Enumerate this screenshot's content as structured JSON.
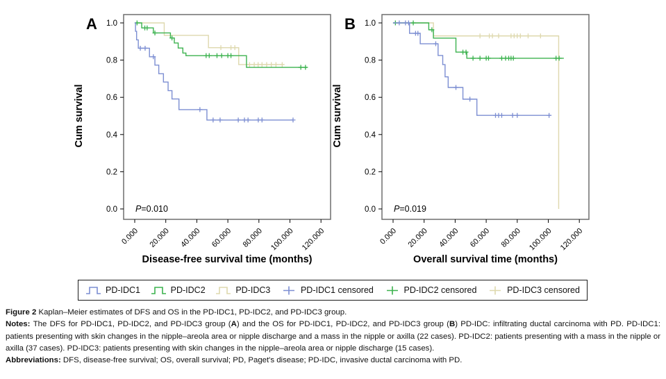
{
  "colors": {
    "idc1": "#7c8ed2",
    "idc2": "#3bb24e",
    "idc3": "#ded8ad",
    "frame": "#6e6e6e",
    "axis": "#000000"
  },
  "legend": {
    "items": [
      {
        "label": "PD-IDC1",
        "color_key": "idc1",
        "icon": "step"
      },
      {
        "label": "PD-IDC2",
        "color_key": "idc2",
        "icon": "step"
      },
      {
        "label": "PD-IDC3",
        "color_key": "idc3",
        "icon": "step"
      },
      {
        "label": "PD-IDC1 censored",
        "color_key": "idc1",
        "icon": "plus"
      },
      {
        "label": "PD-IDC2 censored",
        "color_key": "idc2",
        "icon": "plus"
      },
      {
        "label": "PD-IDC3 censored",
        "color_key": "idc3",
        "icon": "plus"
      }
    ]
  },
  "chart_data": [
    {
      "type": "line",
      "subtype": "kaplan-meier-step",
      "panel_label": "A",
      "xlabel": "Disease-free survival time (months)",
      "ylabel": "Cum survival",
      "p_annotation": "P=0.010",
      "xlim": [
        0,
        126
      ],
      "ylim": [
        0.0,
        1.0
      ],
      "grid": false,
      "legend_position": "bottom-shared",
      "xticks": [
        {
          "value": 0,
          "label": "0.000"
        },
        {
          "value": 20,
          "label": "20.000"
        },
        {
          "value": 40,
          "label": "40.000"
        },
        {
          "value": 60,
          "label": "60.000"
        },
        {
          "value": 80,
          "label": "80.000"
        },
        {
          "value": 100,
          "label": "100.000"
        },
        {
          "value": 120,
          "label": "120.000"
        }
      ],
      "yticks": [
        {
          "value": 0.0,
          "label": "0.0"
        },
        {
          "value": 0.2,
          "label": "0.2"
        },
        {
          "value": 0.4,
          "label": "0.4"
        },
        {
          "value": 0.6,
          "label": "0.6"
        },
        {
          "value": 0.8,
          "label": "0.8"
        },
        {
          "value": 1.0,
          "label": "1.0"
        }
      ],
      "series": [
        {
          "name": "PD-IDC3",
          "color_key": "idc3",
          "steps": [
            [
              0,
              1.0
            ],
            [
              19,
              0.933
            ],
            [
              47.5,
              0.867
            ],
            [
              67,
              0.776
            ]
          ],
          "end_time": 96,
          "censored": [
            [
              55.5,
              0.867
            ],
            [
              62,
              0.867
            ],
            [
              64.5,
              0.867
            ],
            [
              74,
              0.776
            ],
            [
              77,
              0.776
            ],
            [
              79.5,
              0.776
            ],
            [
              82,
              0.776
            ],
            [
              85,
              0.776
            ],
            [
              88,
              0.776
            ],
            [
              91,
              0.776
            ],
            [
              95,
              0.776
            ]
          ]
        },
        {
          "name": "PD-IDC2",
          "color_key": "idc2",
          "steps": [
            [
              0,
              1.0
            ],
            [
              4.5,
              0.973
            ],
            [
              12,
              0.946
            ],
            [
              23,
              0.919
            ],
            [
              25.5,
              0.892
            ],
            [
              28,
              0.865
            ],
            [
              31,
              0.838
            ],
            [
              33,
              0.824
            ],
            [
              72,
              0.761
            ]
          ],
          "end_time": 111,
          "censored": [
            [
              1.5,
              1.0
            ],
            [
              6.5,
              0.973
            ],
            [
              8,
              0.973
            ],
            [
              13,
              0.946
            ],
            [
              24,
              0.919
            ],
            [
              46,
              0.824
            ],
            [
              48,
              0.824
            ],
            [
              53,
              0.824
            ],
            [
              56,
              0.824
            ],
            [
              60,
              0.824
            ],
            [
              62,
              0.824
            ],
            [
              107,
              0.761
            ],
            [
              110,
              0.761
            ]
          ]
        },
        {
          "name": "PD-IDC1",
          "color_key": "idc1",
          "steps": [
            [
              0,
              1.0
            ],
            [
              0.5,
              0.955
            ],
            [
              1.2,
              0.909
            ],
            [
              2.3,
              0.864
            ],
            [
              9.5,
              0.818
            ],
            [
              13,
              0.773
            ],
            [
              15.5,
              0.727
            ],
            [
              18.5,
              0.682
            ],
            [
              21.5,
              0.636
            ],
            [
              24,
              0.591
            ],
            [
              28.5,
              0.534
            ],
            [
              46.5,
              0.478
            ]
          ],
          "end_time": 102,
          "censored": [
            [
              3.6,
              0.864
            ],
            [
              6.7,
              0.864
            ],
            [
              12,
              0.818
            ],
            [
              42,
              0.534
            ],
            [
              50.5,
              0.478
            ],
            [
              55,
              0.478
            ],
            [
              66.7,
              0.478
            ],
            [
              70.7,
              0.478
            ],
            [
              73,
              0.478
            ],
            [
              79.6,
              0.478
            ],
            [
              82,
              0.478
            ],
            [
              102,
              0.478
            ]
          ]
        }
      ]
    },
    {
      "type": "line",
      "subtype": "kaplan-meier-step",
      "panel_label": "B",
      "xlabel": "Overall survival time (months)",
      "ylabel": "Cum survival",
      "p_annotation": "P=0.019",
      "xlim": [
        0,
        126
      ],
      "ylim": [
        0.0,
        1.0
      ],
      "grid": false,
      "legend_position": "bottom-shared",
      "xticks": [
        {
          "value": 0,
          "label": "0.000"
        },
        {
          "value": 20,
          "label": "20.000"
        },
        {
          "value": 40,
          "label": "40.000"
        },
        {
          "value": 60,
          "label": "60.000"
        },
        {
          "value": 80,
          "label": "80.000"
        },
        {
          "value": 100,
          "label": "100.000"
        },
        {
          "value": 120,
          "label": "120.000"
        }
      ],
      "yticks": [
        {
          "value": 0.0,
          "label": "0.0"
        },
        {
          "value": 0.2,
          "label": "0.2"
        },
        {
          "value": 0.4,
          "label": "0.4"
        },
        {
          "value": 0.6,
          "label": "0.6"
        },
        {
          "value": 0.8,
          "label": "0.8"
        },
        {
          "value": 1.0,
          "label": "1.0"
        }
      ],
      "series": [
        {
          "name": "PD-IDC3",
          "color_key": "idc3",
          "steps": [
            [
              0,
              1.0
            ],
            [
              26,
              0.93
            ],
            [
              106.7,
              0.0
            ]
          ],
          "end_time": 106.7,
          "censored": [
            [
              56,
              0.93
            ],
            [
              62,
              0.93
            ],
            [
              64,
              0.93
            ],
            [
              68,
              0.93
            ],
            [
              76,
              0.93
            ],
            [
              78,
              0.93
            ],
            [
              80,
              0.93
            ],
            [
              82,
              0.93
            ],
            [
              87,
              0.93
            ],
            [
              95,
              0.93
            ]
          ]
        },
        {
          "name": "PD-IDC2",
          "color_key": "idc2",
          "steps": [
            [
              0,
              1.0
            ],
            [
              23,
              0.963
            ],
            [
              26,
              0.918
            ],
            [
              40.5,
              0.843
            ],
            [
              47.5,
              0.81
            ]
          ],
          "end_time": 110,
          "censored": [
            [
              1.5,
              1.0
            ],
            [
              13,
              1.0
            ],
            [
              25,
              0.963
            ],
            [
              45,
              0.843
            ],
            [
              47,
              0.843
            ],
            [
              51.5,
              0.81
            ],
            [
              56,
              0.81
            ],
            [
              60,
              0.81
            ],
            [
              61.5,
              0.81
            ],
            [
              70,
              0.81
            ],
            [
              72.5,
              0.81
            ],
            [
              74.5,
              0.81
            ],
            [
              76,
              0.81
            ],
            [
              77.5,
              0.81
            ],
            [
              105,
              0.81
            ],
            [
              107,
              0.81
            ]
          ]
        },
        {
          "name": "PD-IDC1",
          "color_key": "idc1",
          "steps": [
            [
              0,
              1.0
            ],
            [
              10.6,
              0.944
            ],
            [
              17.5,
              0.888
            ],
            [
              29,
              0.825
            ],
            [
              32,
              0.776
            ],
            [
              33.5,
              0.71
            ],
            [
              35.5,
              0.653
            ],
            [
              45,
              0.59
            ],
            [
              54,
              0.503
            ]
          ],
          "end_time": 101,
          "censored": [
            [
              4,
              1.0
            ],
            [
              8,
              1.0
            ],
            [
              10,
              1.0
            ],
            [
              14.5,
              0.944
            ],
            [
              16,
              0.944
            ],
            [
              27.5,
              0.888
            ],
            [
              40.5,
              0.653
            ],
            [
              49.5,
              0.59
            ],
            [
              66,
              0.503
            ],
            [
              68,
              0.503
            ],
            [
              70,
              0.503
            ],
            [
              77,
              0.503
            ],
            [
              80,
              0.503
            ],
            [
              100.5,
              0.503
            ]
          ]
        }
      ]
    }
  ],
  "caption": {
    "paragraphs": [
      {
        "name": "figure-title",
        "segments": [
          {
            "t": "Figure 2 ",
            "b": true
          },
          {
            "t": "Kaplan–Meier estimates of DFS and OS in the PD-IDC1, PD-IDC2, and PD-IDC3 group."
          }
        ]
      },
      {
        "name": "figure-notes",
        "segments": [
          {
            "t": "Notes: ",
            "b": true
          },
          {
            "t": "The DFS for PD-IDC1, PD-IDC2, and PD-IDC3 group ("
          },
          {
            "t": "A",
            "b": true
          },
          {
            "t": ") and the OS for PD-IDC1, PD-IDC2, and PD-IDC3 group ("
          },
          {
            "t": "B",
            "b": true
          },
          {
            "t": ") PD-IDC: infiltrating ductal carcinoma with PD. PD-IDC1: patients presenting with skin changes in the nipple–areola area or nipple discharge and a mass in the nipple or axilla (22 cases). PD-IDC2: patients presenting with a mass in the nipple or axilla (37 cases). PD-IDC3: patients presenting with skin changes in the nipple–areola area or nipple discharge (15 cases)."
          }
        ]
      },
      {
        "name": "figure-abbreviations",
        "segments": [
          {
            "t": "Abbreviations: ",
            "b": true
          },
          {
            "t": "DFS, disease-free survival; OS, overall survival; PD, Paget's disease; PD-IDC, invasive ductal carcinoma with PD."
          }
        ]
      }
    ]
  }
}
